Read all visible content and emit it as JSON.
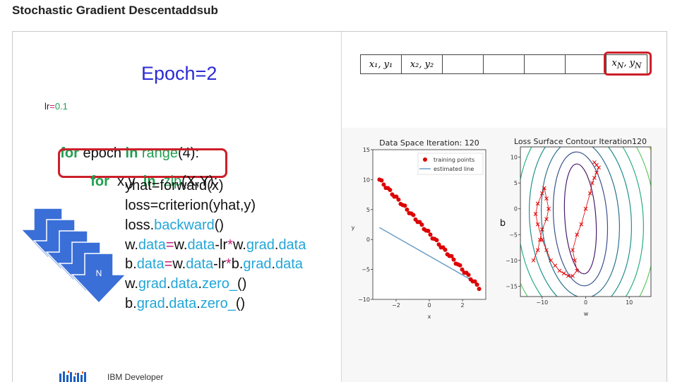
{
  "page": {
    "title": "Stochastic Gradient Descentaddsub"
  },
  "slide": {
    "epoch_label": "Epoch=2",
    "lr_name": "lr",
    "lr_eq": "=",
    "lr_value": "0.1",
    "code": {
      "l1_for": "for",
      "l1_mid": " epoch ",
      "l1_in": "in",
      "l1_range": " range",
      "l1_args": "(4):",
      "l2_for": "for",
      "l2_mid": "  x,y  ",
      "l2_in": "in",
      "l2_zip": "  zip",
      "l2_args": "(X,Y):",
      "l3": "yhat=forward(x)",
      "l4": "loss=criterion(yhat,y)",
      "l5_a": "loss.",
      "l5_b": "backward",
      "l5_c": "()",
      "l6_a": "w.",
      "l6_b": "data",
      "l6_c": "=",
      "l6_d": "w.",
      "l6_e": "data",
      "l6_f": "-lr",
      "l6_g": "*",
      "l6_h": "w.",
      "l6_i": "grad",
      "l6_j": ".",
      "l6_k": "data",
      "l7_a": "b.",
      "l7_b": "data",
      "l7_c": "=",
      "l7_d": "w.",
      "l7_e": "data",
      "l7_f": "-lr",
      "l7_g": "*",
      "l7_h": "b.",
      "l7_i": "grad",
      "l7_j": ".",
      "l7_k": "data",
      "l8_a": "w.",
      "l8_b": "grad",
      "l8_c": ".",
      "l8_d": "data",
      "l8_e": ".",
      "l8_f": "zero_",
      "l8_g": "()",
      "l9_a": "b.",
      "l9_b": "grad",
      "l9_c": ".",
      "l9_d": "data",
      "l9_e": ".",
      "l9_f": "zero_",
      "l9_g": "()"
    },
    "stack_label": "N",
    "brand": "IBM Developer",
    "table_cells": [
      "x₁, y₁",
      "x₂, y₂",
      "",
      "",
      "",
      "",
      "x_N, y_N"
    ],
    "colors": {
      "highlight": "#cc1f2a",
      "keyword": "#20a050",
      "attribute": "#22a6d8",
      "epoch": "#2b2bd4",
      "arrow": "#3a6fd8"
    }
  },
  "chart_data": [
    {
      "type": "scatter",
      "title": "Data Space Iteration: 120",
      "xlabel": "x",
      "ylabel": "y",
      "xlim": [
        -3.4,
        3.4
      ],
      "ylim": [
        -10,
        15
      ],
      "xticks": [
        -2,
        0,
        2
      ],
      "yticks": [
        15,
        10,
        5,
        0,
        -5,
        -10
      ],
      "legend": "top-right",
      "series": [
        {
          "name": "training points",
          "kind": "scatter",
          "color": "#dd0000",
          "line": {
            "x": [
              -3,
              3
            ],
            "y": [
              10,
              -8
            ]
          }
        },
        {
          "name": "estimated line",
          "kind": "line",
          "color": "#6c9ec6",
          "x": [
            -3,
            3
          ],
          "y": [
            2,
            -7.5
          ]
        }
      ]
    },
    {
      "type": "contour",
      "title": "Loss Surface Contour Iteration120",
      "xlabel": "w",
      "ylabel": "b",
      "xlim": [
        -15,
        15
      ],
      "ylim": [
        -17,
        12
      ],
      "xticks": [
        -10,
        0,
        10
      ],
      "yticks": [
        10,
        5,
        0,
        -5,
        -10,
        -15
      ],
      "series": [
        {
          "name": "",
          "kind": "path",
          "color": "#dd0000",
          "x": [
            -12,
            -11,
            -10.5,
            -10,
            -9,
            -8.5,
            -9,
            -9.5,
            -10,
            -11,
            -11.5,
            -11,
            -10,
            -9,
            -8,
            -7,
            -6,
            -5,
            -4,
            -3,
            -2,
            -2.5,
            -3,
            -2,
            -1,
            0,
            1,
            1.5,
            2,
            2.5,
            3,
            2.5,
            2
          ],
          "y": [
            -10,
            -8,
            -6,
            -4,
            -2,
            0,
            2,
            4,
            3,
            1,
            -1,
            -3,
            -6,
            -8,
            -10,
            -11,
            -12,
            -12.5,
            -13,
            -13,
            -12,
            -10,
            -8,
            -5,
            -3,
            0,
            3,
            5,
            6,
            7,
            8,
            8.5,
            9
          ]
        }
      ]
    }
  ]
}
